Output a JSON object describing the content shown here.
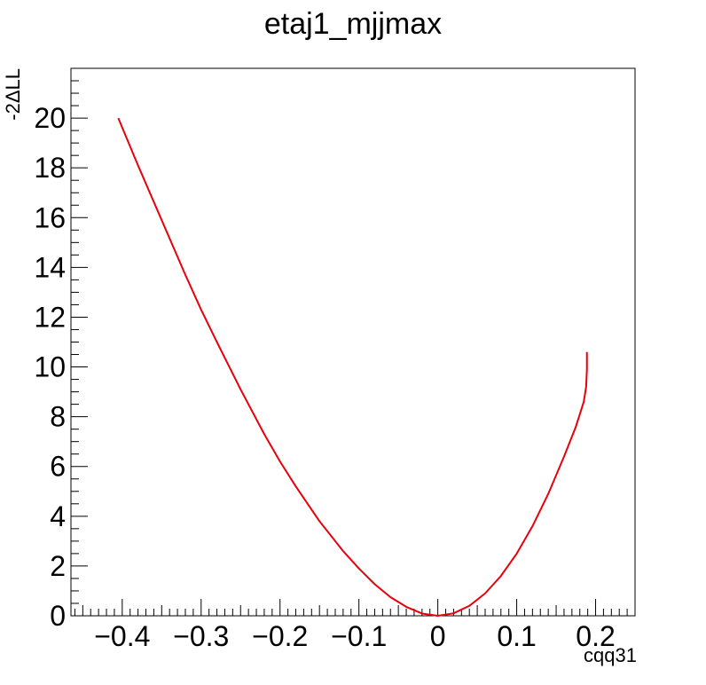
{
  "chart_data": {
    "type": "line",
    "title": "etaj1_mjjmax",
    "xlabel": "cqq31",
    "ylabel": "-2ΔLL",
    "xlim": [
      -0.465,
      0.25
    ],
    "ylim": [
      0,
      22
    ],
    "x_ticks": [
      -0.4,
      -0.3,
      -0.2,
      -0.1,
      0,
      0.1,
      0.2
    ],
    "x_tick_labels": [
      "−0.4",
      "−0.3",
      "−0.2",
      "−0.1",
      "0",
      "0.1",
      "0.2"
    ],
    "y_ticks": [
      0,
      2,
      4,
      6,
      8,
      10,
      12,
      14,
      16,
      18,
      20
    ],
    "y_tick_labels": [
      "0",
      "2",
      "4",
      "6",
      "8",
      "10",
      "12",
      "14",
      "16",
      "18",
      "20"
    ],
    "grid": false,
    "series": [
      {
        "color": "#e8000b",
        "x": [
          -0.405,
          -0.38,
          -0.35,
          -0.32,
          -0.3,
          -0.28,
          -0.25,
          -0.22,
          -0.2,
          -0.18,
          -0.15,
          -0.12,
          -0.1,
          -0.08,
          -0.06,
          -0.04,
          -0.02,
          0,
          0.02,
          0.04,
          0.06,
          0.08,
          0.1,
          0.12,
          0.14,
          0.16,
          0.175,
          0.185,
          0.188,
          0.189,
          0.189
        ],
        "y": [
          20.0,
          18.1,
          15.9,
          13.7,
          12.3,
          11.0,
          9.1,
          7.3,
          6.2,
          5.2,
          3.8,
          2.6,
          1.9,
          1.27,
          0.75,
          0.36,
          0.09,
          0.0,
          0.1,
          0.4,
          0.9,
          1.6,
          2.5,
          3.6,
          4.9,
          6.4,
          7.6,
          8.6,
          9.2,
          9.9,
          10.6
        ]
      }
    ]
  }
}
